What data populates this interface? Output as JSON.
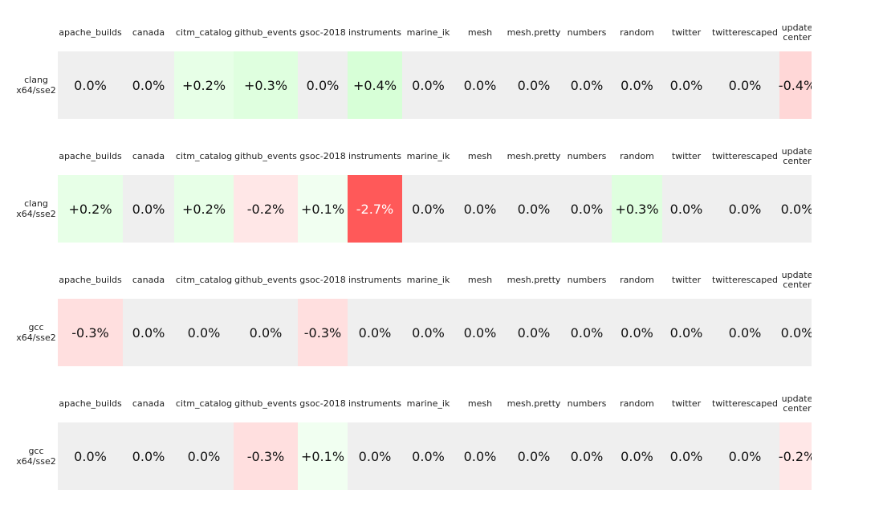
{
  "chart_data": [
    {
      "type": "heatmap",
      "row_label": "clang x64/sse2",
      "categories": [
        "apache_builds",
        "canada",
        "citm_catalog",
        "github_events",
        "gsoc-2018",
        "instruments",
        "marine_ik",
        "mesh",
        "mesh.pretty",
        "numbers",
        "random",
        "twitter",
        "twitterescaped",
        "update center"
      ],
      "values": [
        0.0,
        0.0,
        0.2,
        0.3,
        0.0,
        0.4,
        0.0,
        0.0,
        0.0,
        0.0,
        0.0,
        0.0,
        0.0,
        -0.4
      ],
      "value_labels": [
        "0.0%",
        "0.0%",
        "+0.2%",
        "+0.3%",
        "0.0%",
        "+0.4%",
        "0.0%",
        "0.0%",
        "0.0%",
        "0.0%",
        "0.0%",
        "0.0%",
        "0.0%",
        "-0.4%"
      ]
    },
    {
      "type": "heatmap",
      "row_label": "clang x64/sse2",
      "categories": [
        "apache_builds",
        "canada",
        "citm_catalog",
        "github_events",
        "gsoc-2018",
        "instruments",
        "marine_ik",
        "mesh",
        "mesh.pretty",
        "numbers",
        "random",
        "twitter",
        "twitterescaped",
        "update center"
      ],
      "values": [
        0.2,
        0.0,
        0.2,
        -0.2,
        0.1,
        -2.7,
        0.0,
        0.0,
        0.0,
        0.0,
        0.3,
        0.0,
        0.0,
        0.0
      ],
      "value_labels": [
        "+0.2%",
        "0.0%",
        "+0.2%",
        "-0.2%",
        "+0.1%",
        "-2.7%",
        "0.0%",
        "0.0%",
        "0.0%",
        "0.0%",
        "+0.3%",
        "0.0%",
        "0.0%",
        "0.0%"
      ]
    },
    {
      "type": "heatmap",
      "row_label": "gcc x64/sse2",
      "categories": [
        "apache_builds",
        "canada",
        "citm_catalog",
        "github_events",
        "gsoc-2018",
        "instruments",
        "marine_ik",
        "mesh",
        "mesh.pretty",
        "numbers",
        "random",
        "twitter",
        "twitterescaped",
        "update center"
      ],
      "values": [
        -0.3,
        0.0,
        0.0,
        0.0,
        -0.3,
        0.0,
        0.0,
        0.0,
        0.0,
        0.0,
        0.0,
        0.0,
        0.0,
        0.0
      ],
      "value_labels": [
        "-0.3%",
        "0.0%",
        "0.0%",
        "0.0%",
        "-0.3%",
        "0.0%",
        "0.0%",
        "0.0%",
        "0.0%",
        "0.0%",
        "0.0%",
        "0.0%",
        "0.0%",
        "0.0%"
      ]
    },
    {
      "type": "heatmap",
      "row_label": "gcc x64/sse2",
      "categories": [
        "apache_builds",
        "canada",
        "citm_catalog",
        "github_events",
        "gsoc-2018",
        "instruments",
        "marine_ik",
        "mesh",
        "mesh.pretty",
        "numbers",
        "random",
        "twitter",
        "twitterescaped",
        "update center"
      ],
      "values": [
        0.0,
        0.0,
        0.0,
        -0.3,
        0.1,
        0.0,
        0.0,
        0.0,
        0.0,
        0.0,
        0.0,
        0.0,
        0.0,
        -0.2
      ],
      "value_labels": [
        "0.0%",
        "0.0%",
        "0.0%",
        "-0.3%",
        "+0.1%",
        "0.0%",
        "0.0%",
        "0.0%",
        "0.0%",
        "0.0%",
        "0.0%",
        "0.0%",
        "0.0%",
        "-0.2%"
      ]
    }
  ]
}
